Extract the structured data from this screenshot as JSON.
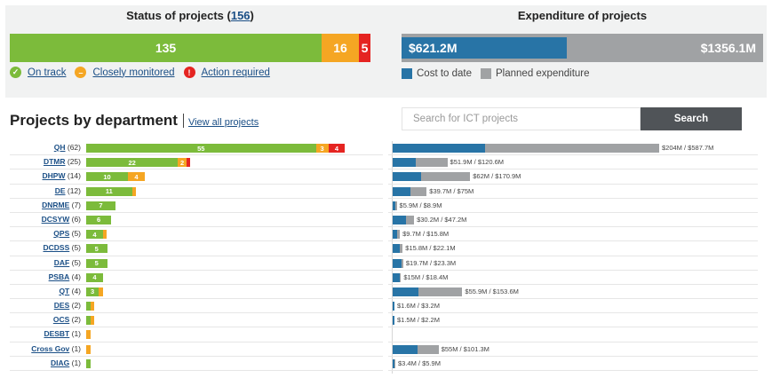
{
  "status": {
    "title_prefix": "Status of projects (",
    "total": "156",
    "title_suffix": ")",
    "on_track": 135,
    "closely_monitored": 16,
    "action_required": 5,
    "on_track_label": "135",
    "closely_label": "16",
    "action_label": "5",
    "legend": {
      "on_track": "On track",
      "closely_monitored": "Closely monitored",
      "action_required": "Action required"
    }
  },
  "expenditure": {
    "title": "Expenditure of projects",
    "cost_to_date": "$621.2M",
    "planned": "$1356.1M",
    "cost_value": 621.2,
    "planned_value": 1356.1,
    "legend": {
      "cost": "Cost to date",
      "planned": "Planned expenditure"
    }
  },
  "departments": {
    "heading": "Projects by department",
    "view_all": "View all projects",
    "search_placeholder": "Search for ICT projects",
    "search_button": "Search",
    "rows": [
      {
        "name": "QH",
        "count": "(62)",
        "green": 55,
        "orange": 3,
        "red": 4,
        "green_label": "55",
        "orange_label": "3",
        "red_label": "4",
        "cost": 204,
        "planned": 587.7,
        "exp_label": "$204M / $587.7M"
      },
      {
        "name": "DTMR",
        "count": "(25)",
        "green": 22,
        "orange": 2,
        "red": 1,
        "green_label": "22",
        "orange_label": "2",
        "red_label": "",
        "cost": 51.9,
        "planned": 120.6,
        "exp_label": "$51.9M / $120.6M"
      },
      {
        "name": "DHPW",
        "count": "(14)",
        "green": 10,
        "orange": 4,
        "red": 0,
        "green_label": "10",
        "orange_label": "4",
        "red_label": "",
        "cost": 62,
        "planned": 170.9,
        "exp_label": "$62M / $170.9M"
      },
      {
        "name": "DE",
        "count": "(12)",
        "green": 11,
        "orange": 1,
        "red": 0,
        "green_label": "11",
        "orange_label": "",
        "red_label": "",
        "cost": 39.7,
        "planned": 75,
        "exp_label": "$39.7M / $75M"
      },
      {
        "name": "DNRME",
        "count": "(7)",
        "green": 7,
        "orange": 0,
        "red": 0,
        "green_label": "7",
        "orange_label": "",
        "red_label": "",
        "cost": 5.9,
        "planned": 8.9,
        "exp_label": "$5.9M / $8.9M"
      },
      {
        "name": "DCSYW",
        "count": "(6)",
        "green": 6,
        "orange": 0,
        "red": 0,
        "green_label": "6",
        "orange_label": "",
        "red_label": "",
        "cost": 30.2,
        "planned": 47.2,
        "exp_label": "$30.2M / $47.2M"
      },
      {
        "name": "QPS",
        "count": "(5)",
        "green": 4,
        "orange": 1,
        "red": 0,
        "green_label": "4",
        "orange_label": "",
        "red_label": "",
        "cost": 9.7,
        "planned": 15.8,
        "exp_label": "$9.7M / $15.8M"
      },
      {
        "name": "DCDSS",
        "count": "(5)",
        "green": 5,
        "orange": 0,
        "red": 0,
        "green_label": "5",
        "orange_label": "",
        "red_label": "",
        "cost": 15.8,
        "planned": 22.1,
        "exp_label": "$15.8M / $22.1M"
      },
      {
        "name": "DAF",
        "count": "(5)",
        "green": 5,
        "orange": 0,
        "red": 0,
        "green_label": "5",
        "orange_label": "",
        "red_label": "",
        "cost": 19.7,
        "planned": 23.3,
        "exp_label": "$19.7M / $23.3M"
      },
      {
        "name": "PSBA",
        "count": "(4)",
        "green": 4,
        "orange": 0,
        "red": 0,
        "green_label": "4",
        "orange_label": "",
        "red_label": "",
        "cost": 15,
        "planned": 18.4,
        "exp_label": "$15M / $18.4M"
      },
      {
        "name": "QT",
        "count": "(4)",
        "green": 3,
        "orange": 1,
        "red": 0,
        "green_label": "3",
        "orange_label": "",
        "red_label": "",
        "cost": 55.9,
        "planned": 153.6,
        "exp_label": "$55.9M / $153.6M"
      },
      {
        "name": "DES",
        "count": "(2)",
        "green": 1,
        "orange": 1,
        "red": 0,
        "green_label": "",
        "orange_label": "",
        "red_label": "",
        "cost": 1.6,
        "planned": 3.2,
        "exp_label": "$1.6M / $3.2M"
      },
      {
        "name": "OCS",
        "count": "(2)",
        "green": 1,
        "orange": 1,
        "red": 0,
        "green_label": "",
        "orange_label": "",
        "red_label": "",
        "cost": 1.5,
        "planned": 2.2,
        "exp_label": "$1.5M / $2.2M"
      },
      {
        "name": "DESBT",
        "count": "(1)",
        "green": 0,
        "orange": 1,
        "red": 0,
        "green_label": "",
        "orange_label": "",
        "red_label": "",
        "cost": 0,
        "planned": 0,
        "exp_label": ""
      },
      {
        "name": "Cross Gov",
        "count": "(1)",
        "green": 0,
        "orange": 1,
        "red": 0,
        "green_label": "",
        "orange_label": "",
        "red_label": "",
        "cost": 55,
        "planned": 101.3,
        "exp_label": "$55M / $101.3M"
      },
      {
        "name": "DIAG",
        "count": "(1)",
        "green": 1,
        "orange": 0,
        "red": 0,
        "green_label": "",
        "orange_label": "",
        "red_label": "",
        "cost": 3.4,
        "planned": 5.9,
        "exp_label": "$3.4M / $5.9M"
      }
    ]
  },
  "colors": {
    "green": "#7cbb3b",
    "orange": "#f5a623",
    "red": "#e52421",
    "blue": "#2874a6",
    "grey": "#a0a2a4"
  },
  "icons": {
    "on_track": "check-circle-icon",
    "closely_monitored": "minus-circle-icon",
    "action_required": "exclamation-circle-icon"
  }
}
